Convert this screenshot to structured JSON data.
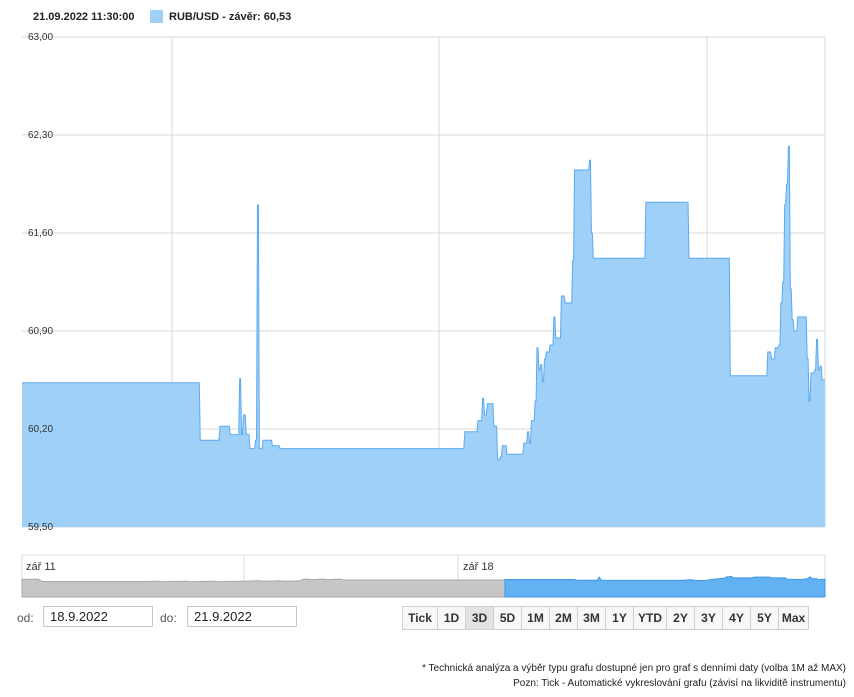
{
  "header": {
    "timestamp": "21.09.2022 11:30:00",
    "legend_label": "RUB/USD - závěr: 60,53",
    "series_color": "#9fd0f7"
  },
  "chart_data": {
    "type": "area",
    "yticks": [
      "63,00",
      "62,30",
      "61,60",
      "60,90",
      "60,20",
      "59,50"
    ],
    "ylim": [
      59.5,
      63.0
    ],
    "x_ticks": [],
    "series": [
      {
        "values": [
          60.53,
          60.53,
          60.53,
          60.53,
          60.53,
          60.53,
          60.53,
          60.53,
          60.53,
          60.53,
          60.53,
          60.53,
          60.53,
          60.53,
          60.53,
          60.53,
          60.53,
          60.53,
          60.53,
          60.53,
          60.53,
          60.53,
          60.53,
          60.53,
          60.53,
          60.53,
          60.53,
          60.53,
          60.53,
          60.53,
          60.53,
          60.53,
          60.53,
          60.53,
          60.53,
          60.53,
          60.53,
          60.53,
          60.53,
          60.53,
          60.53,
          60.53,
          60.53,
          60.53,
          60.53,
          60.53,
          60.53,
          60.53,
          60.53,
          60.53,
          60.53,
          60.53,
          60.53,
          60.53,
          60.53,
          60.53,
          60.53,
          60.53,
          60.53,
          60.53,
          60.53,
          60.53,
          60.53,
          60.53,
          60.53,
          60.53,
          60.53,
          60.53,
          60.53,
          60.53,
          60.53,
          60.53,
          60.53,
          60.53,
          60.53,
          60.53,
          60.53,
          60.53,
          60.53,
          60.53,
          60.53,
          60.53,
          60.53,
          60.53,
          60.53,
          60.53,
          60.53,
          60.53,
          60.53,
          60.53,
          60.53,
          60.53,
          60.53,
          60.53,
          60.53,
          60.53,
          60.53,
          60.53,
          60.53,
          60.53,
          60.53,
          60.53,
          60.53,
          60.53,
          60.53,
          60.53,
          60.53,
          60.53,
          60.53,
          60.53,
          60.53,
          60.53,
          60.53,
          60.53,
          60.53,
          60.53,
          60.53,
          60.53,
          60.53,
          60.53,
          60.53,
          60.53,
          60.53,
          60.53,
          60.53,
          60.53,
          60.53,
          60.53,
          60.53,
          60.53,
          60.53,
          60.53,
          60.53,
          60.53,
          60.53,
          60.53,
          60.53,
          60.53,
          60.53,
          60.53,
          60.53,
          60.53,
          60.53,
          60.53,
          60.53,
          60.53,
          60.53,
          60.53,
          60.53,
          60.53,
          60.53,
          60.53,
          60.53,
          60.53,
          60.53,
          60.53,
          60.53,
          60.53,
          60.53,
          60.53,
          60.53,
          60.53,
          60.53,
          60.53,
          60.53,
          60.53,
          60.53,
          60.53,
          60.53,
          60.53,
          60.53,
          60.53,
          60.53,
          60.53,
          60.53,
          60.53,
          60.53,
          60.53,
          60.53,
          60.53,
          60.53,
          60.53,
          60.53,
          60.53,
          60.53,
          60.53,
          60.53,
          60.53,
          60.53,
          60.53,
          60.12,
          60.12,
          60.12,
          60.12,
          60.12,
          60.12,
          60.12,
          60.12,
          60.12,
          60.12,
          60.12,
          60.12,
          60.12,
          60.12,
          60.12,
          60.12,
          60.12,
          60.12,
          60.12,
          60.12,
          60.12,
          60.22,
          60.22,
          60.22,
          60.22,
          60.22,
          60.22,
          60.22,
          60.22,
          60.22,
          60.22,
          60.22,
          60.16,
          60.16,
          60.16,
          60.16,
          60.16,
          60.16,
          60.16,
          60.16,
          60.16,
          60.16,
          60.56,
          60.56,
          60.16,
          60.16,
          60.3,
          60.3,
          60.3,
          60.16,
          60.16,
          60.16,
          60.16,
          60.06,
          60.06,
          60.06,
          60.06,
          60.06,
          60.06,
          60.12,
          60.12,
          61.8,
          61.8,
          60.06,
          60.06,
          60.06,
          60.06,
          60.12,
          60.12,
          60.12,
          60.12,
          60.12,
          60.12,
          60.12,
          60.12,
          60.12,
          60.12,
          60.08,
          60.08,
          60.08,
          60.08,
          60.08,
          60.08,
          60.08,
          60.08,
          60.06,
          60.06,
          60.06,
          60.06,
          60.06,
          60.06,
          60.06,
          60.06,
          60.06,
          60.06,
          60.06,
          60.06,
          60.06,
          60.06,
          60.06,
          60.06,
          60.06,
          60.06,
          60.06,
          60.06,
          60.06,
          60.06,
          60.06,
          60.06,
          60.06,
          60.06,
          60.06,
          60.06,
          60.06,
          60.06,
          60.06,
          60.06,
          60.06,
          60.06,
          60.06,
          60.06,
          60.06,
          60.06,
          60.06,
          60.06,
          60.06,
          60.06,
          60.06,
          60.06,
          60.06,
          60.06,
          60.06,
          60.06,
          60.06,
          60.06,
          60.06,
          60.06,
          60.06,
          60.06,
          60.06,
          60.06,
          60.06,
          60.06,
          60.06,
          60.06,
          60.06,
          60.06,
          60.06,
          60.06,
          60.06,
          60.06,
          60.06,
          60.06,
          60.06,
          60.06,
          60.06,
          60.06,
          60.06,
          60.06,
          60.06,
          60.06,
          60.06,
          60.06,
          60.06,
          60.06,
          60.06,
          60.06,
          60.06,
          60.06,
          60.06,
          60.06,
          60.06,
          60.06,
          60.06,
          60.06,
          60.06,
          60.06,
          60.06,
          60.06,
          60.06,
          60.06,
          60.06,
          60.06,
          60.06,
          60.06,
          60.06,
          60.06,
          60.06,
          60.06,
          60.06,
          60.06,
          60.06,
          60.06,
          60.06,
          60.06,
          60.06,
          60.06,
          60.06,
          60.06,
          60.06,
          60.06,
          60.06,
          60.06,
          60.06,
          60.06,
          60.06,
          60.06,
          60.06,
          60.06,
          60.06,
          60.06,
          60.06,
          60.06,
          60.06,
          60.06,
          60.06,
          60.06,
          60.06,
          60.06,
          60.06,
          60.06,
          60.06,
          60.06,
          60.06,
          60.06,
          60.06,
          60.06,
          60.06,
          60.06,
          60.06,
          60.06,
          60.06,
          60.06,
          60.06,
          60.06,
          60.06,
          60.06,
          60.06,
          60.06,
          60.06,
          60.06,
          60.06,
          60.06,
          60.06,
          60.06,
          60.06,
          60.06,
          60.06,
          60.06,
          60.06,
          60.06,
          60.06,
          60.06,
          60.06,
          60.06,
          60.06,
          60.06,
          60.06,
          60.06,
          60.06,
          60.06,
          60.06,
          60.06,
          60.06,
          60.06,
          60.06,
          60.06,
          60.06,
          60.06,
          60.06,
          60.06,
          60.06,
          60.06,
          60.06,
          60.06,
          60.06,
          60.06,
          60.06,
          60.06,
          60.06,
          60.06,
          60.06,
          60.18,
          60.18,
          60.18,
          60.18,
          60.18,
          60.18,
          60.18,
          60.18,
          60.18,
          60.18,
          60.18,
          60.18,
          60.18,
          60.18,
          60.26,
          60.26,
          60.26,
          60.26,
          60.26,
          60.42,
          60.42,
          60.3,
          60.3,
          60.3,
          60.38,
          60.38,
          60.38,
          60.38,
          60.38,
          60.38,
          60.38,
          60.22,
          60.22,
          60.22,
          60.22,
          59.98,
          59.98,
          59.98,
          60.0,
          60.0,
          60.08,
          60.08,
          60.08,
          60.08,
          60.08,
          60.02,
          60.02,
          60.02,
          60.02,
          60.02,
          60.02,
          60.02,
          60.02,
          60.02,
          60.02,
          60.02,
          60.02,
          60.02,
          60.02,
          60.02,
          60.02,
          60.02,
          60.02,
          60.1,
          60.1,
          60.1,
          60.1,
          60.18,
          60.18,
          60.1,
          60.1,
          60.26,
          60.26,
          60.26,
          60.26,
          60.4,
          60.4,
          60.78,
          60.78,
          60.62,
          60.62,
          60.66,
          60.66,
          60.54,
          60.54,
          60.7,
          60.7,
          60.75,
          60.75,
          60.75,
          60.75,
          60.8,
          60.8,
          60.8,
          60.8,
          61.0,
          61.0,
          60.85,
          60.85,
          60.85,
          60.85,
          60.85,
          60.85,
          61.15,
          61.15,
          61.15,
          61.15,
          61.1,
          61.1,
          61.1,
          61.1,
          61.1,
          61.1,
          61.1,
          61.1,
          61.4,
          61.4,
          62.05,
          62.05,
          62.05,
          62.05,
          62.05,
          62.05,
          62.05,
          62.05,
          62.05,
          62.05,
          62.05,
          62.05,
          62.05,
          62.05,
          62.05,
          62.05,
          62.12,
          62.12,
          61.6,
          61.6,
          61.42,
          61.42,
          61.42,
          61.42,
          61.42,
          61.42,
          61.42,
          61.42,
          61.42,
          61.42,
          61.42,
          61.42,
          61.42,
          61.42,
          61.42,
          61.42,
          61.42,
          61.42,
          61.42,
          61.42,
          61.42,
          61.42,
          61.42,
          61.42,
          61.42,
          61.42,
          61.42,
          61.42,
          61.42,
          61.42,
          61.42,
          61.42,
          61.42,
          61.42,
          61.42,
          61.42,
          61.42,
          61.42,
          61.42,
          61.42,
          61.42,
          61.42,
          61.42,
          61.42,
          61.42,
          61.42,
          61.42,
          61.42,
          61.42,
          61.42,
          61.42,
          61.42,
          61.42,
          61.42,
          61.42,
          61.42,
          61.82,
          61.82,
          61.82,
          61.82,
          61.82,
          61.82,
          61.82,
          61.82,
          61.82,
          61.82,
          61.82,
          61.82,
          61.82,
          61.82,
          61.82,
          61.82,
          61.82,
          61.82,
          61.82,
          61.82,
          61.82,
          61.82,
          61.82,
          61.82,
          61.82,
          61.82,
          61.82,
          61.82,
          61.82,
          61.82,
          61.82,
          61.82,
          61.82,
          61.82,
          61.82,
          61.82,
          61.82,
          61.82,
          61.82,
          61.82,
          61.82,
          61.82,
          61.82,
          61.82,
          61.82,
          61.82,
          61.42,
          61.42,
          61.42,
          61.42,
          61.42,
          61.42,
          61.42,
          61.42,
          61.42,
          61.42,
          61.42,
          61.42,
          61.42,
          61.42,
          61.42,
          61.42,
          61.42,
          61.42,
          61.42,
          61.42,
          61.42,
          61.42,
          61.42,
          61.42,
          61.42,
          61.42,
          61.42,
          61.42,
          61.42,
          61.42,
          61.42,
          61.42,
          61.42,
          61.42,
          61.42,
          61.42,
          61.42,
          61.42,
          61.42,
          61.42,
          61.42,
          61.42,
          61.42,
          61.42,
          60.58,
          60.58,
          60.58,
          60.58,
          60.58,
          60.58,
          60.58,
          60.58,
          60.58,
          60.58,
          60.58,
          60.58,
          60.58,
          60.58,
          60.58,
          60.58,
          60.58,
          60.58,
          60.58,
          60.58,
          60.58,
          60.58,
          60.58,
          60.58,
          60.58,
          60.58,
          60.58,
          60.58,
          60.58,
          60.58,
          60.58,
          60.58,
          60.58,
          60.58,
          60.58,
          60.58,
          60.58,
          60.58,
          60.58,
          60.58,
          60.75,
          60.75,
          60.75,
          60.75,
          60.7,
          60.7,
          60.7,
          60.7,
          60.78,
          60.78,
          60.78,
          60.78,
          60.8,
          60.8,
          61.1,
          61.1,
          61.25,
          61.25,
          61.8,
          61.8,
          61.95,
          61.95,
          62.22,
          62.22,
          61.2,
          61.2,
          60.98,
          60.98,
          60.9,
          60.9,
          60.9,
          60.9,
          61.0,
          61.0,
          61.0,
          61.0,
          61.0,
          61.0,
          61.0,
          61.0,
          61.0,
          61.0,
          60.7,
          60.7,
          60.4,
          60.4,
          60.6,
          60.6,
          60.6,
          60.6,
          60.62,
          60.62,
          60.84,
          60.84,
          60.62,
          60.62,
          60.65,
          60.65,
          60.55,
          60.55,
          60.55,
          60.55
        ]
      }
    ],
    "navigator_labels": [
      "zář 11",
      "zář 18"
    ],
    "grid": true
  },
  "controls": {
    "from_label": "od:",
    "from_value": "18.9.2022",
    "to_label": "do:",
    "to_value": "21.9.2022",
    "range_buttons": [
      "Tick",
      "1D",
      "3D",
      "5D",
      "1M",
      "2M",
      "3M",
      "1Y",
      "YTD",
      "2Y",
      "3Y",
      "4Y",
      "5Y",
      "Max"
    ],
    "active_range": "3D"
  },
  "notes": [
    "* Technická analýza a výběr typu grafu dostupné jen pro graf s denními daty (volba 1M až MAX)",
    "Pozn: Tick - Automatické vykreslování grafu (závisí na likviditě instrumentu)"
  ]
}
